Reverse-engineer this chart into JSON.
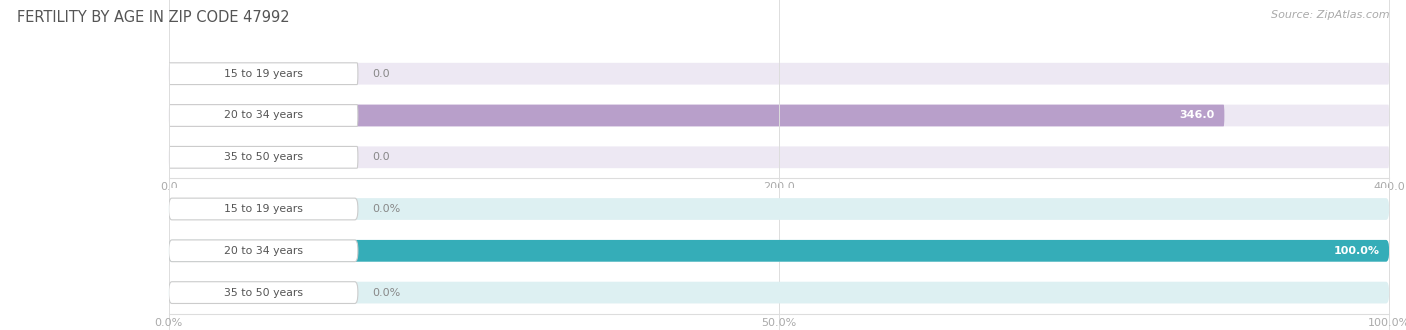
{
  "title": "FERTILITY BY AGE IN ZIP CODE 47992",
  "source": "Source: ZipAtlas.com",
  "categories": [
    "15 to 19 years",
    "20 to 34 years",
    "35 to 50 years"
  ],
  "values_count": [
    0.0,
    346.0,
    0.0
  ],
  "values_pct": [
    0.0,
    100.0,
    0.0
  ],
  "max_count": 400.0,
  "max_pct": 100.0,
  "xticks_count": [
    0.0,
    200.0,
    400.0
  ],
  "xticks_count_labels": [
    "0.0",
    "200.0",
    "400.0"
  ],
  "xticks_pct_vals": [
    0.0,
    50.0,
    100.0
  ],
  "xticks_pct_labels": [
    "0.0%",
    "50.0%",
    "100.0%"
  ],
  "bar_color_top": "#b89fca",
  "bar_color_bottom": "#35adb8",
  "bar_bg_color_top": "#ede8f3",
  "bar_bg_color_bottom": "#ddf0f2",
  "title_color": "#555555",
  "source_color": "#aaaaaa",
  "tick_color": "#aaaaaa",
  "grid_color": "#dddddd",
  "label_text_color": "#555555",
  "value_color_zero": "#888888",
  "value_color_inside": "#ffffff",
  "pill_edge_color": "#cccccc",
  "pill_bg_color": "#ffffff"
}
